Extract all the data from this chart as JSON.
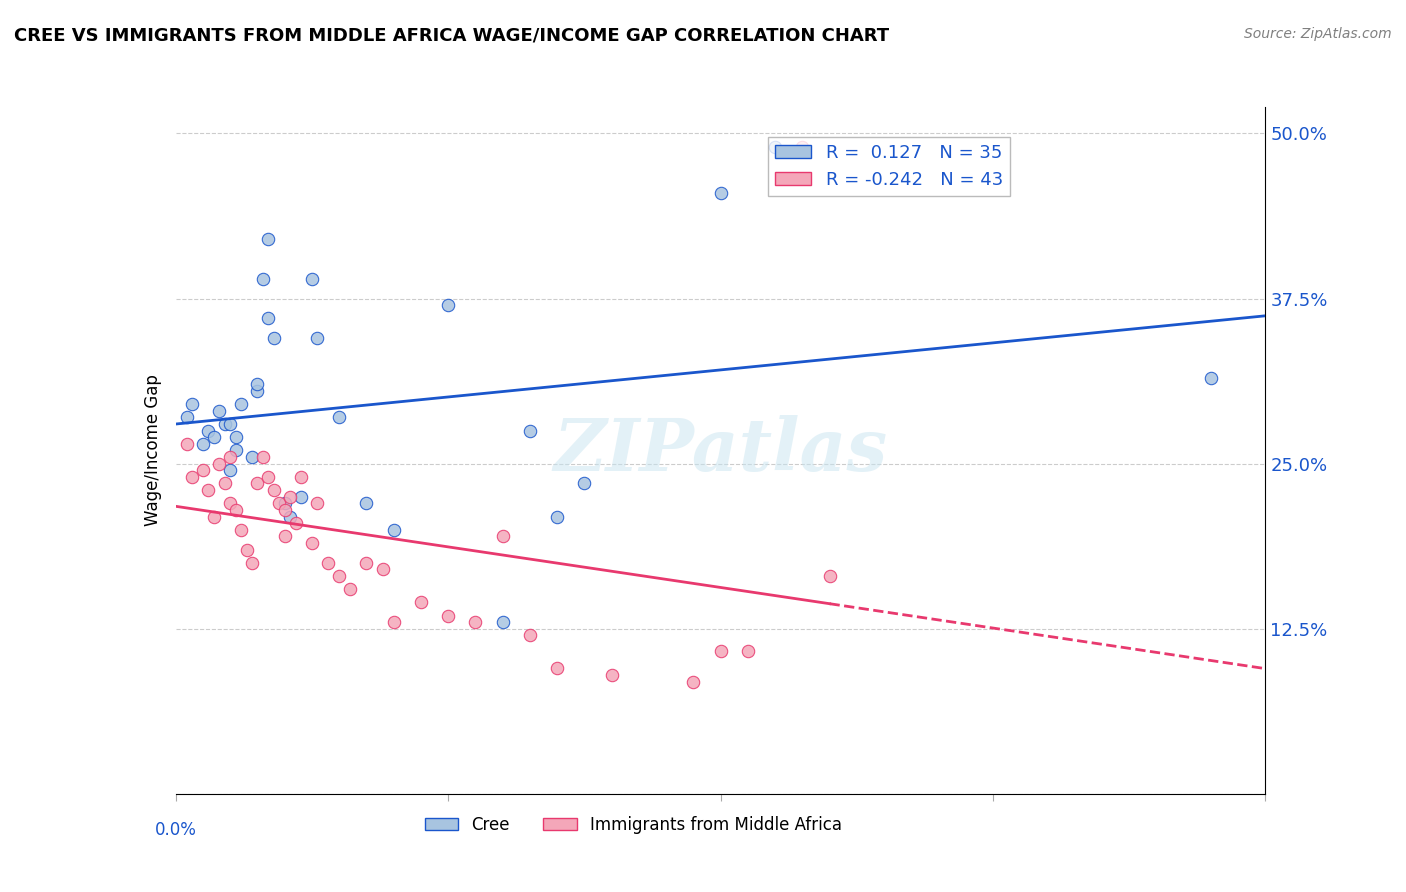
{
  "title": "CREE VS IMMIGRANTS FROM MIDDLE AFRICA WAGE/INCOME GAP CORRELATION CHART",
  "source": "Source: ZipAtlas.com",
  "ylabel": "Wage/Income Gap",
  "yticks": [
    0.0,
    0.125,
    0.25,
    0.375,
    0.5
  ],
  "ytick_labels": [
    "",
    "12.5%",
    "25.0%",
    "37.5%",
    "50.0%"
  ],
  "xlim": [
    0.0,
    0.2
  ],
  "ylim": [
    0.0,
    0.52
  ],
  "watermark": "ZIPatlas",
  "cree_color": "#a8c4e0",
  "immigrants_color": "#f4a7b9",
  "line_cree_color": "#1a56cc",
  "line_immigrants_color": "#e8396e",
  "cree_scatter_x": [
    0.002,
    0.003,
    0.005,
    0.006,
    0.007,
    0.008,
    0.009,
    0.01,
    0.01,
    0.011,
    0.011,
    0.012,
    0.014,
    0.015,
    0.015,
    0.016,
    0.017,
    0.017,
    0.018,
    0.02,
    0.021,
    0.023,
    0.025,
    0.026,
    0.03,
    0.035,
    0.04,
    0.05,
    0.06,
    0.065,
    0.07,
    0.075,
    0.1,
    0.11,
    0.19
  ],
  "cree_scatter_y": [
    0.285,
    0.295,
    0.265,
    0.275,
    0.27,
    0.29,
    0.28,
    0.245,
    0.28,
    0.27,
    0.26,
    0.295,
    0.255,
    0.305,
    0.31,
    0.39,
    0.36,
    0.42,
    0.345,
    0.22,
    0.21,
    0.225,
    0.39,
    0.345,
    0.285,
    0.22,
    0.2,
    0.37,
    0.13,
    0.275,
    0.21,
    0.235,
    0.455,
    0.49,
    0.315
  ],
  "immigrants_scatter_x": [
    0.002,
    0.003,
    0.005,
    0.006,
    0.007,
    0.008,
    0.009,
    0.01,
    0.01,
    0.011,
    0.012,
    0.013,
    0.014,
    0.015,
    0.016,
    0.017,
    0.018,
    0.019,
    0.02,
    0.02,
    0.021,
    0.022,
    0.023,
    0.025,
    0.026,
    0.028,
    0.03,
    0.032,
    0.035,
    0.038,
    0.04,
    0.045,
    0.05,
    0.055,
    0.06,
    0.065,
    0.07,
    0.08,
    0.095,
    0.1,
    0.105,
    0.115,
    0.12
  ],
  "immigrants_scatter_y": [
    0.265,
    0.24,
    0.245,
    0.23,
    0.21,
    0.25,
    0.235,
    0.22,
    0.255,
    0.215,
    0.2,
    0.185,
    0.175,
    0.235,
    0.255,
    0.24,
    0.23,
    0.22,
    0.215,
    0.195,
    0.225,
    0.205,
    0.24,
    0.19,
    0.22,
    0.175,
    0.165,
    0.155,
    0.175,
    0.17,
    0.13,
    0.145,
    0.135,
    0.13,
    0.195,
    0.12,
    0.095,
    0.09,
    0.085,
    0.108,
    0.108,
    0.49,
    0.165
  ]
}
